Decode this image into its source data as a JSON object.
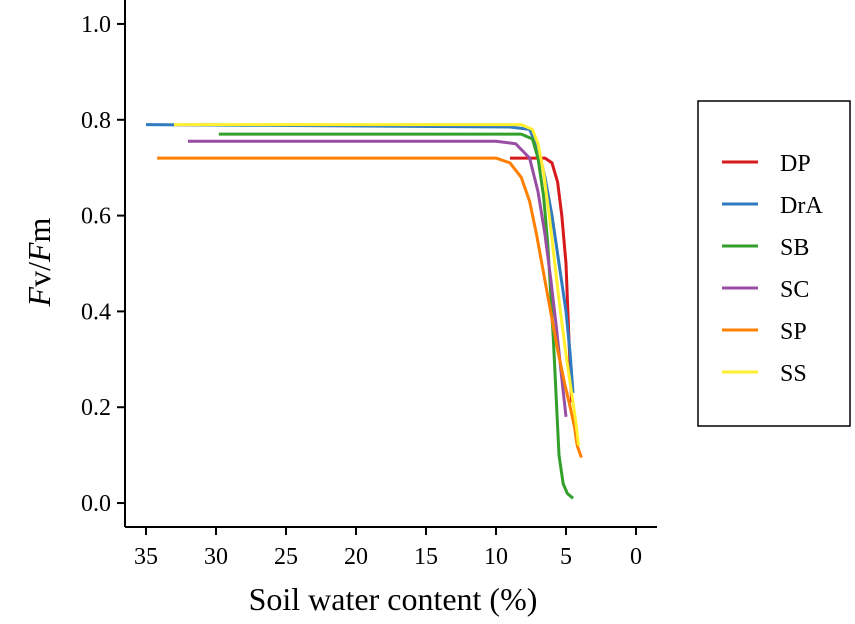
{
  "chart_data": {
    "type": "line",
    "title": "",
    "xlabel": "Soil water content (%)",
    "ylabel": {
      "part1": "F",
      "part2": "v",
      "part3": "/",
      "part4": "F",
      "part5": "m"
    },
    "xlim": [
      36.5,
      -1.5
    ],
    "ylim": [
      -0.05,
      1.05
    ],
    "x_reversed": true,
    "x_ticks": [
      35,
      30,
      25,
      20,
      15,
      10,
      5,
      0
    ],
    "x_tick_labels": [
      "35",
      "30",
      "25",
      "20",
      "15",
      "10",
      "5",
      "0"
    ],
    "y_ticks": [
      0.0,
      0.2,
      0.4,
      0.6,
      0.8,
      1.0
    ],
    "y_tick_labels": [
      "0.0",
      "0.2",
      "0.4",
      "0.6",
      "0.8",
      "1.0"
    ],
    "grid": false,
    "legend_position": "right",
    "series": [
      {
        "name": "DP",
        "color": "#d7191c",
        "x": [
          9.0,
          6.5,
          6.0,
          5.6,
          5.3,
          5.0,
          4.8,
          4.6
        ],
        "y": [
          0.72,
          0.72,
          0.71,
          0.67,
          0.6,
          0.5,
          0.35,
          0.21
        ]
      },
      {
        "name": "DrA",
        "color": "#2f7bbf",
        "x": [
          35.0,
          9.0,
          7.6,
          7.0,
          6.5,
          6.0,
          5.5,
          5.0,
          4.7,
          4.5
        ],
        "y": [
          0.79,
          0.785,
          0.78,
          0.74,
          0.68,
          0.6,
          0.5,
          0.4,
          0.31,
          0.23
        ]
      },
      {
        "name": "SB",
        "color": "#33a02c",
        "x": [
          29.8,
          8.2,
          7.4,
          7.0,
          6.6,
          6.3,
          6.1,
          5.9,
          5.7,
          5.5,
          5.2,
          4.9,
          4.5
        ],
        "y": [
          0.77,
          0.77,
          0.76,
          0.72,
          0.64,
          0.54,
          0.44,
          0.34,
          0.22,
          0.1,
          0.04,
          0.02,
          0.01
        ]
      },
      {
        "name": "SC",
        "color": "#984ea3",
        "x": [
          32.0,
          10.0,
          8.6,
          7.6,
          7.0,
          6.5,
          6.1,
          5.7,
          5.3,
          5.0
        ],
        "y": [
          0.755,
          0.755,
          0.75,
          0.72,
          0.65,
          0.56,
          0.47,
          0.37,
          0.26,
          0.18
        ]
      },
      {
        "name": "SP",
        "color": "#ff7f00",
        "x": [
          34.2,
          10.0,
          9.0,
          8.2,
          7.6,
          7.1,
          6.6,
          6.1,
          5.6,
          5.1,
          4.7,
          4.4,
          4.2,
          3.9
        ],
        "y": [
          0.72,
          0.72,
          0.71,
          0.68,
          0.63,
          0.56,
          0.48,
          0.4,
          0.32,
          0.25,
          0.2,
          0.16,
          0.12,
          0.095
        ]
      },
      {
        "name": "SS",
        "color": "#ffef2f",
        "x": [
          33.0,
          8.2,
          7.4,
          7.0,
          6.6,
          6.2,
          5.8,
          5.4,
          5.0,
          4.6,
          4.3,
          4.1
        ],
        "y": [
          0.79,
          0.79,
          0.78,
          0.75,
          0.69,
          0.6,
          0.5,
          0.4,
          0.31,
          0.23,
          0.17,
          0.12
        ]
      }
    ]
  }
}
